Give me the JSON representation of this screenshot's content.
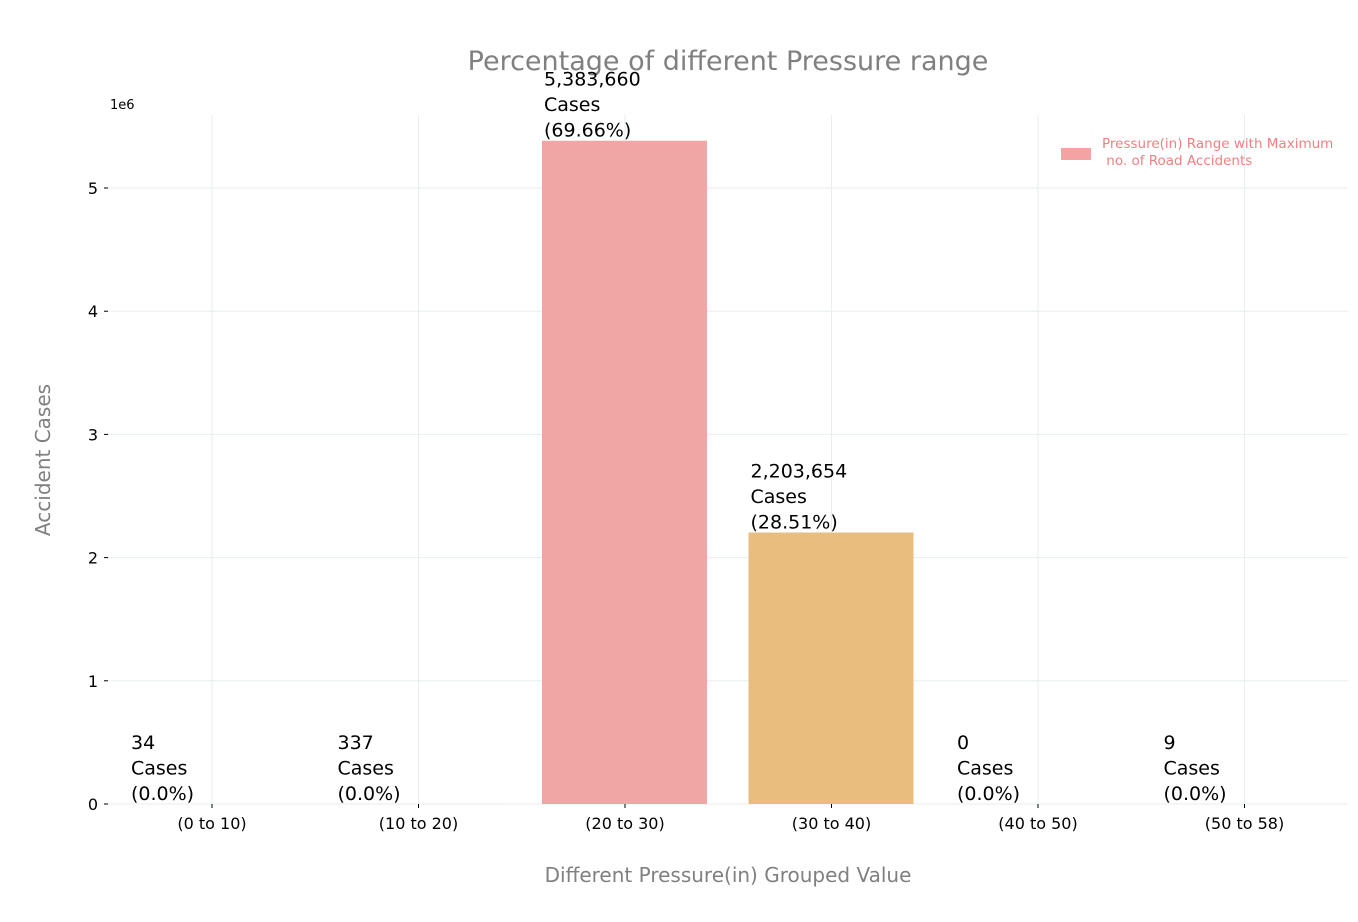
{
  "chart_data": {
    "type": "bar",
    "title": "Percentage of different Pressure range",
    "xlabel": "Different Pressure(in) Grouped Value",
    "ylabel": "Accident Cases",
    "y_offset_text": "1e6",
    "categories": [
      "(0 to 10)",
      "(10 to 20)",
      "(20 to 30)",
      "(30 to 40)",
      "(40 to 50)",
      "(50 to 58)"
    ],
    "values": [
      34,
      337,
      5383660,
      2203654,
      0,
      9
    ],
    "data_labels": [
      [
        "34",
        "Cases",
        "(0.0%)"
      ],
      [
        "337",
        "Cases",
        "(0.0%)"
      ],
      [
        "5,383,660",
        "Cases",
        "(69.66%)"
      ],
      [
        "2,203,654",
        "Cases",
        "(28.51%)"
      ],
      [
        "0",
        "Cases",
        "(0.0%)"
      ],
      [
        "9",
        "Cases",
        "(0.0%)"
      ]
    ],
    "bar_colors": [
      "#f4a582",
      "#f4a582",
      "#f0a6a4",
      "#e9bd7e",
      "#f4a582",
      "#f4a582"
    ],
    "yticks": [
      0,
      1000000,
      2000000,
      3000000,
      4000000,
      5000000
    ],
    "ytick_labels": [
      "0",
      "1",
      "2",
      "3",
      "4",
      "5"
    ],
    "ylim": [
      0,
      5600000
    ],
    "grid": true,
    "legend": {
      "placement": "top-right",
      "entries": [
        {
          "label_line1": "Pressure(in) Range with Maximum",
          "label_line2": " no. of Road Accidents",
          "color": "#f4a3a3"
        }
      ]
    }
  }
}
